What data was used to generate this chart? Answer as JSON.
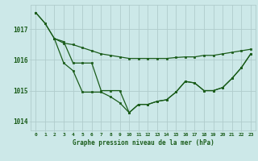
{
  "title": "Graphe pression niveau de la mer (hPa)",
  "bg_color": "#cce8e8",
  "grid_color": "#b0cccc",
  "line_color": "#1a5c1a",
  "text_color": "#1a5c1a",
  "xlim": [
    -0.5,
    23.5
  ],
  "ylim": [
    1013.7,
    1017.8
  ],
  "yticks": [
    1014,
    1015,
    1016,
    1017
  ],
  "xticks": [
    0,
    1,
    2,
    3,
    4,
    5,
    6,
    7,
    8,
    9,
    10,
    11,
    12,
    13,
    14,
    15,
    16,
    17,
    18,
    19,
    20,
    21,
    22,
    23
  ],
  "series1_x": [
    0,
    1,
    2,
    3,
    4,
    5,
    6,
    7,
    8,
    9,
    10,
    11,
    12,
    13,
    14,
    15,
    16,
    17,
    18,
    19,
    20,
    21,
    22,
    23
  ],
  "series1_y": [
    1017.55,
    1017.2,
    1016.7,
    1016.55,
    1016.5,
    1016.4,
    1016.3,
    1016.2,
    1016.15,
    1016.1,
    1016.05,
    1016.05,
    1016.05,
    1016.05,
    1016.05,
    1016.08,
    1016.1,
    1016.1,
    1016.15,
    1016.15,
    1016.2,
    1016.25,
    1016.3,
    1016.35
  ],
  "series2_x": [
    0,
    1,
    2,
    3,
    4,
    5,
    6,
    7,
    8,
    9,
    10,
    11,
    12,
    13,
    14,
    15,
    16,
    17,
    18,
    19,
    20,
    21,
    22,
    23
  ],
  "series2_y": [
    1017.55,
    1017.2,
    1016.7,
    1015.9,
    1015.65,
    1014.95,
    1014.95,
    1014.95,
    1014.8,
    1014.6,
    1014.28,
    1014.55,
    1014.55,
    1014.65,
    1014.7,
    1014.95,
    1015.3,
    1015.25,
    1015.0,
    1015.0,
    1015.1,
    1015.4,
    1015.75,
    1016.2
  ],
  "series3_x": [
    2,
    3,
    4,
    5,
    6,
    7,
    8,
    9,
    10,
    11,
    12,
    13,
    14,
    15,
    16,
    17,
    18,
    19,
    20,
    21,
    22,
    23
  ],
  "series3_y": [
    1016.7,
    1016.6,
    1015.9,
    1015.9,
    1015.9,
    1015.0,
    1015.0,
    1015.0,
    1014.28,
    1014.55,
    1014.55,
    1014.65,
    1014.7,
    1014.95,
    1015.3,
    1015.25,
    1015.0,
    1015.0,
    1015.1,
    1015.4,
    1015.75,
    1016.2
  ]
}
